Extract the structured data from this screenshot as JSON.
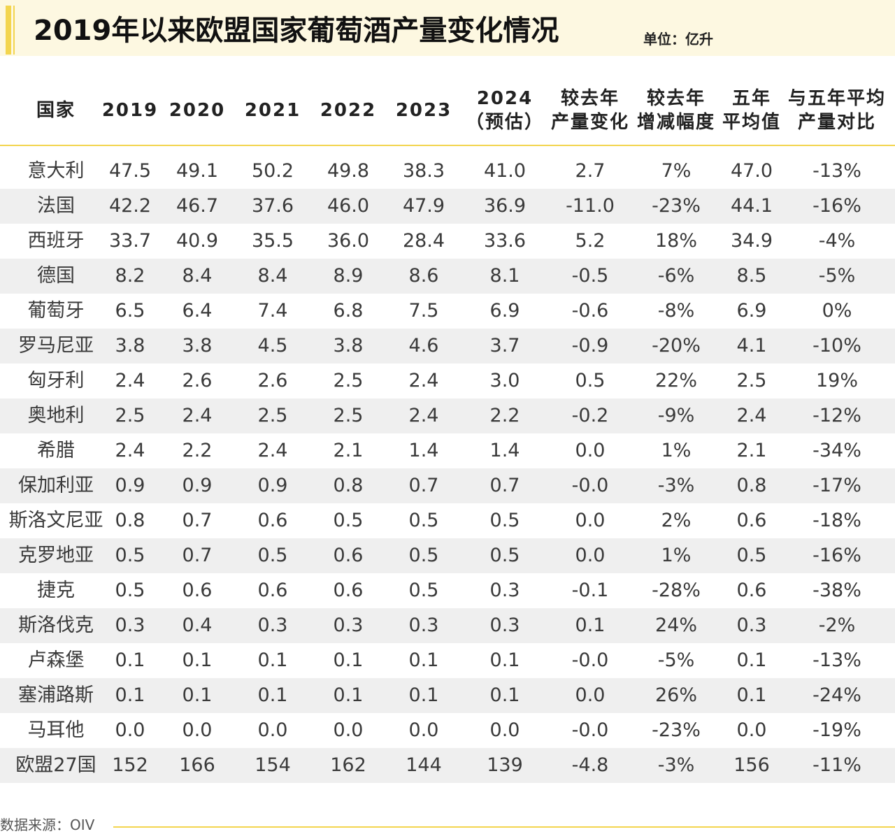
{
  "chart_data": {
    "type": "table",
    "title": "2019年以来欧盟国家葡萄酒产量变化情况",
    "unit": "单位：亿升",
    "columns": [
      [
        "国家"
      ],
      [
        "2019"
      ],
      [
        "2020"
      ],
      [
        "2021"
      ],
      [
        "2022"
      ],
      [
        "2023"
      ],
      [
        "2024",
        "（预估）"
      ],
      [
        "较去年",
        "产量变化"
      ],
      [
        "较去年",
        "增减幅度"
      ],
      [
        "五年",
        "平均值"
      ],
      [
        "与五年平均",
        "产量对比"
      ]
    ],
    "rows": [
      [
        "意大利",
        "47.5",
        "49.1",
        "50.2",
        "49.8",
        "38.3",
        "41.0",
        "2.7",
        "7%",
        "47.0",
        "-13%"
      ],
      [
        "法国",
        "42.2",
        "46.7",
        "37.6",
        "46.0",
        "47.9",
        "36.9",
        "-11.0",
        "-23%",
        "44.1",
        "-16%"
      ],
      [
        "西班牙",
        "33.7",
        "40.9",
        "35.5",
        "36.0",
        "28.4",
        "33.6",
        "5.2",
        "18%",
        "34.9",
        "-4%"
      ],
      [
        "德国",
        "8.2",
        "8.4",
        "8.4",
        "8.9",
        "8.6",
        "8.1",
        "-0.5",
        "-6%",
        "8.5",
        "-5%"
      ],
      [
        "葡萄牙",
        "6.5",
        "6.4",
        "7.4",
        "6.8",
        "7.5",
        "6.9",
        "-0.6",
        "-8%",
        "6.9",
        "0%"
      ],
      [
        "罗马尼亚",
        "3.8",
        "3.8",
        "4.5",
        "3.8",
        "4.6",
        "3.7",
        "-0.9",
        "-20%",
        "4.1",
        "-10%"
      ],
      [
        "匈牙利",
        "2.4",
        "2.6",
        "2.6",
        "2.5",
        "2.4",
        "3.0",
        "0.5",
        "22%",
        "2.5",
        "19%"
      ],
      [
        "奥地利",
        "2.5",
        "2.4",
        "2.5",
        "2.5",
        "2.4",
        "2.2",
        "-0.2",
        "-9%",
        "2.4",
        "-12%"
      ],
      [
        "希腊",
        "2.4",
        "2.2",
        "2.4",
        "2.1",
        "1.4",
        "1.4",
        "0.0",
        "1%",
        "2.1",
        "-34%"
      ],
      [
        "保加利亚",
        "0.9",
        "0.9",
        "0.9",
        "0.8",
        "0.7",
        "0.7",
        "-0.0",
        "-3%",
        "0.8",
        "-17%"
      ],
      [
        "斯洛文尼亚",
        "0.8",
        "0.7",
        "0.6",
        "0.5",
        "0.5",
        "0.5",
        "0.0",
        "2%",
        "0.6",
        "-18%"
      ],
      [
        "克罗地亚",
        "0.5",
        "0.7",
        "0.5",
        "0.6",
        "0.5",
        "0.5",
        "0.0",
        "1%",
        "0.5",
        "-16%"
      ],
      [
        "捷克",
        "0.5",
        "0.6",
        "0.6",
        "0.6",
        "0.5",
        "0.3",
        "-0.1",
        "-28%",
        "0.6",
        "-38%"
      ],
      [
        "斯洛伐克",
        "0.3",
        "0.4",
        "0.3",
        "0.3",
        "0.3",
        "0.3",
        "0.1",
        "24%",
        "0.3",
        "-2%"
      ],
      [
        "卢森堡",
        "0.1",
        "0.1",
        "0.1",
        "0.1",
        "0.1",
        "0.1",
        "-0.0",
        "-5%",
        "0.1",
        "-13%"
      ],
      [
        "塞浦路斯",
        "0.1",
        "0.1",
        "0.1",
        "0.1",
        "0.1",
        "0.1",
        "0.0",
        "26%",
        "0.1",
        "-24%"
      ],
      [
        "马耳他",
        "0.0",
        "0.0",
        "0.0",
        "0.0",
        "0.0",
        "0.0",
        "-0.0",
        "-23%",
        "0.0",
        "-19%"
      ],
      [
        "欧盟27国",
        "152",
        "166",
        "154",
        "162",
        "144",
        "139",
        "-4.8",
        "-3%",
        "156",
        "-11%"
      ]
    ],
    "source": "数据来源：OIV"
  },
  "colors": {
    "accent": "#f3d54e",
    "title_band": "#fdf8e1",
    "row_shade": "#efefef"
  }
}
